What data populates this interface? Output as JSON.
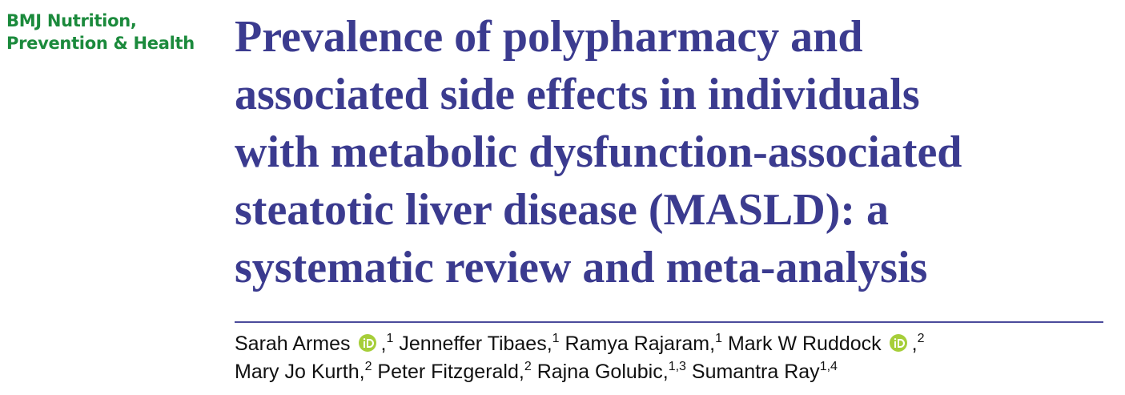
{
  "journal": {
    "lines": [
      "BMJ Nutrition,",
      "Prevention & Health"
    ]
  },
  "article": {
    "title_lines": [
      "Prevalence of polypharmacy and",
      "associated side effects in individuals",
      "with metabolic dysfunction-associated",
      "steatotic liver disease (MASLD): a",
      "systematic review and meta-analysis"
    ],
    "author_lines": [
      [
        {
          "name": "Sarah Armes",
          "orcid": true,
          "separator": ",",
          "affiliation": "1"
        },
        {
          "name": "Jenneffer Tibaes",
          "orcid": false,
          "separator": ",",
          "affiliation": "1"
        },
        {
          "name": "Ramya Rajaram",
          "orcid": false,
          "separator": ",",
          "affiliation": "1"
        },
        {
          "name": "Mark W Ruddock",
          "orcid": true,
          "separator": ",",
          "affiliation": "2"
        }
      ],
      [
        {
          "name": "Mary Jo Kurth",
          "orcid": false,
          "separator": ",",
          "affiliation": "2"
        },
        {
          "name": "Peter Fitzgerald",
          "orcid": false,
          "separator": ",",
          "affiliation": "2"
        },
        {
          "name": "Rajna Golubic",
          "orcid": false,
          "separator": ",",
          "affiliation": "1,3"
        },
        {
          "name": "Sumantra Ray",
          "orcid": false,
          "affiliation": "1,4"
        }
      ]
    ]
  }
}
